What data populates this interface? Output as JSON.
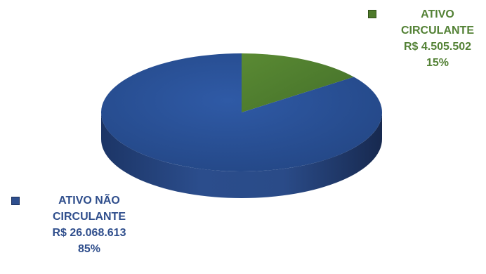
{
  "chart_data": {
    "type": "pie",
    "style": "3d",
    "slices": [
      {
        "name": "ATIVO CIRCULANTE",
        "line1": "ATIVO",
        "line2": "CIRCULANTE",
        "value": 4505502,
        "value_label": "R$ 4.505.502",
        "percent": 15,
        "percent_label": "15%",
        "color": "#538135"
      },
      {
        "name": "ATIVO NÃO CIRCULANTE",
        "line1": "ATIVO NÃO",
        "line2": "CIRCULANTE",
        "value": 26068613,
        "value_label": "R$ 26.068.613",
        "percent": 85,
        "percent_label": "85%",
        "color": "#2e5497"
      }
    ]
  }
}
